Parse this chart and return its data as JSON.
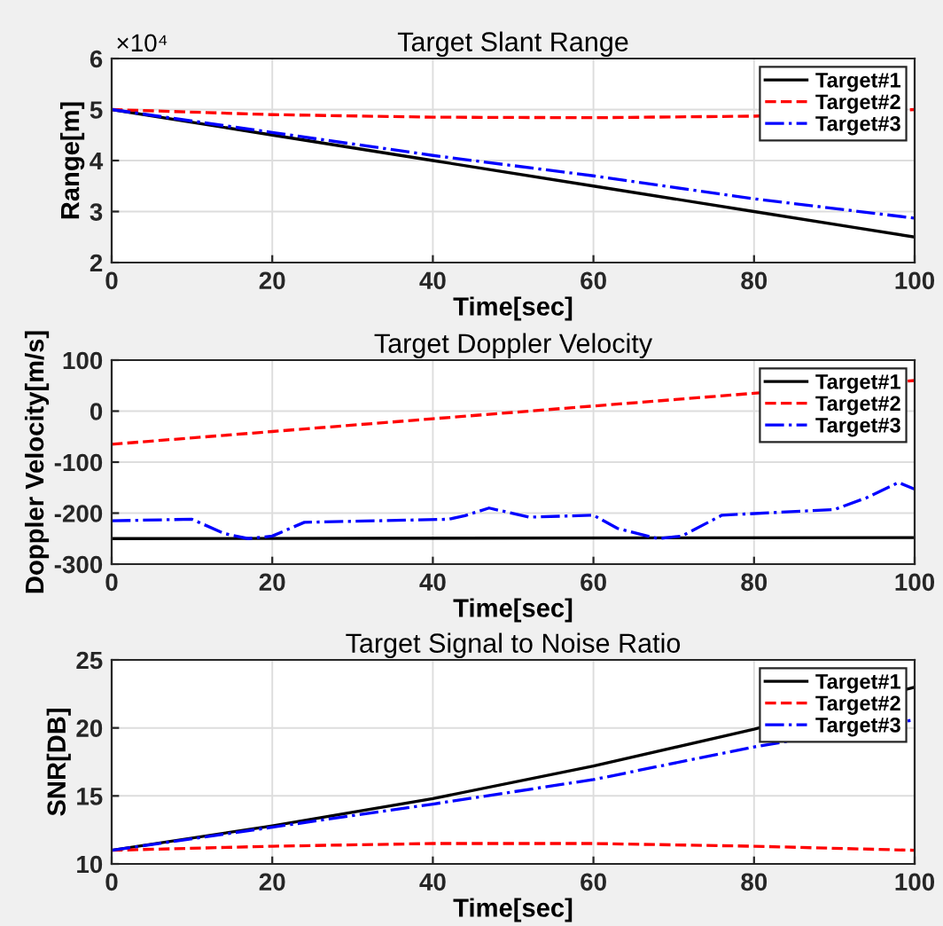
{
  "chart_data": [
    {
      "type": "line",
      "title": "Target Slant Range",
      "xlabel": "Time[sec]",
      "ylabel": "Range[m]",
      "annotations": [
        "×10⁴"
      ],
      "x": [
        0,
        20,
        40,
        60,
        80,
        100
      ],
      "xlim": [
        0,
        100
      ],
      "xticks": [
        0,
        20,
        40,
        60,
        80,
        100
      ],
      "ylim": [
        2,
        6
      ],
      "yticks": [
        2,
        3,
        4,
        5,
        6
      ],
      "grid": true,
      "legend": "top right",
      "series": [
        {
          "name": "Target#1",
          "color": "#000000",
          "line_style": "solid",
          "values": [
            5,
            4.5,
            4,
            3.5,
            3,
            2.5
          ]
        },
        {
          "name": "Target#2",
          "color": "#ff0000",
          "line_style": "dashed",
          "values": [
            5,
            4.9,
            4.85,
            4.84,
            4.87,
            5
          ]
        },
        {
          "name": "Target#3",
          "color": "#0000ff",
          "line_style": "dashdot",
          "values": [
            5,
            4.55,
            4.1,
            3.7,
            3.25,
            2.87
          ]
        }
      ]
    },
    {
      "type": "line",
      "title": "Target Doppler Velocity",
      "xlabel": "Time[sec]",
      "ylabel": "Doppler Velocity[m/s]",
      "xlim": [
        0,
        100
      ],
      "xticks": [
        0,
        20,
        40,
        60,
        80,
        100
      ],
      "ylim": [
        -300,
        100
      ],
      "yticks": [
        -300,
        -200,
        -100,
        0,
        100
      ],
      "grid": true,
      "legend": "top right",
      "series": [
        {
          "name": "Target#1",
          "color": "#000000",
          "line_style": "solid",
          "x": [
            0,
            100
          ],
          "values": [
            -250,
            -248
          ]
        },
        {
          "name": "Target#2",
          "color": "#ff0000",
          "line_style": "dashed",
          "x": [
            0,
            20,
            40,
            60,
            80,
            100
          ],
          "values": [
            -65,
            -40,
            -15,
            10,
            35,
            60
          ]
        },
        {
          "name": "Target#3",
          "color": "#0000ff",
          "line_style": "dashdot",
          "x": [
            0,
            10,
            14,
            17,
            20,
            24,
            42,
            44,
            47,
            52,
            60,
            63,
            68,
            71,
            76,
            90,
            94,
            98,
            100
          ],
          "values": [
            -215,
            -212,
            -240,
            -250,
            -245,
            -218,
            -212,
            -205,
            -190,
            -208,
            -204,
            -230,
            -250,
            -245,
            -204,
            -193,
            -170,
            -140,
            -153
          ]
        }
      ]
    },
    {
      "type": "line",
      "title": "Target Signal to Noise Ratio",
      "xlabel": "Time[sec]",
      "ylabel": "SNR[DB]",
      "x": [
        0,
        20,
        40,
        60,
        80,
        100
      ],
      "xlim": [
        0,
        100
      ],
      "xticks": [
        0,
        20,
        40,
        60,
        80,
        100
      ],
      "ylim": [
        10,
        25
      ],
      "yticks": [
        10,
        15,
        20,
        25
      ],
      "grid": true,
      "legend": "top right",
      "series": [
        {
          "name": "Target#1",
          "color": "#000000",
          "line_style": "solid",
          "values": [
            11,
            12.8,
            14.8,
            17.2,
            19.9,
            23
          ]
        },
        {
          "name": "Target#2",
          "color": "#ff0000",
          "line_style": "dashed",
          "values": [
            11,
            11.3,
            11.5,
            11.5,
            11.3,
            11
          ]
        },
        {
          "name": "Target#3",
          "color": "#0000ff",
          "line_style": "dashdot",
          "values": [
            11,
            12.7,
            14.4,
            16.2,
            18.6,
            20.6
          ]
        }
      ]
    }
  ]
}
